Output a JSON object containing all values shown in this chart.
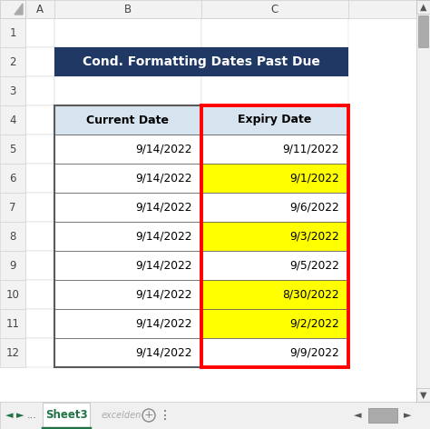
{
  "title": "Cond. Formatting Dates Past Due",
  "title_bg": "#1F3864",
  "title_color": "#FFFFFF",
  "header_bg": "#D6E4F0",
  "col_headers": [
    "Current Date",
    "Expiry Date"
  ],
  "current_dates": [
    "9/14/2022",
    "9/14/2022",
    "9/14/2022",
    "9/14/2022",
    "9/14/2022",
    "9/14/2022",
    "9/14/2022",
    "9/14/2022"
  ],
  "expiry_dates": [
    "9/11/2022",
    "9/1/2022",
    "9/6/2022",
    "9/3/2022",
    "9/5/2022",
    "8/30/2022",
    "9/2/2022",
    "9/9/2022"
  ],
  "highlight_rows": [
    1,
    3,
    5,
    6
  ],
  "highlight_color": "#FFFF00",
  "expiry_col_border_color": "#FF0000",
  "col_labels": [
    "A",
    "B",
    "C"
  ],
  "cell_border_color": "#5A5A5A",
  "tab_text": "Sheet3",
  "watermark": "excelden",
  "grid_bg": "#FFFFFF",
  "row_header_bg": "#F2F2F2",
  "col_header_bg": "#F2F2F2",
  "sheet_bg": "#FFFFFF",
  "outer_bg": "#E8E8E8",
  "scrollbar_bg": "#F0F0F0",
  "scrollbar_thumb": "#ABABAB",
  "bottom_bar_bg": "#F0F0F0",
  "tab_active_color": "#217346",
  "tab_text_color": "#217346"
}
